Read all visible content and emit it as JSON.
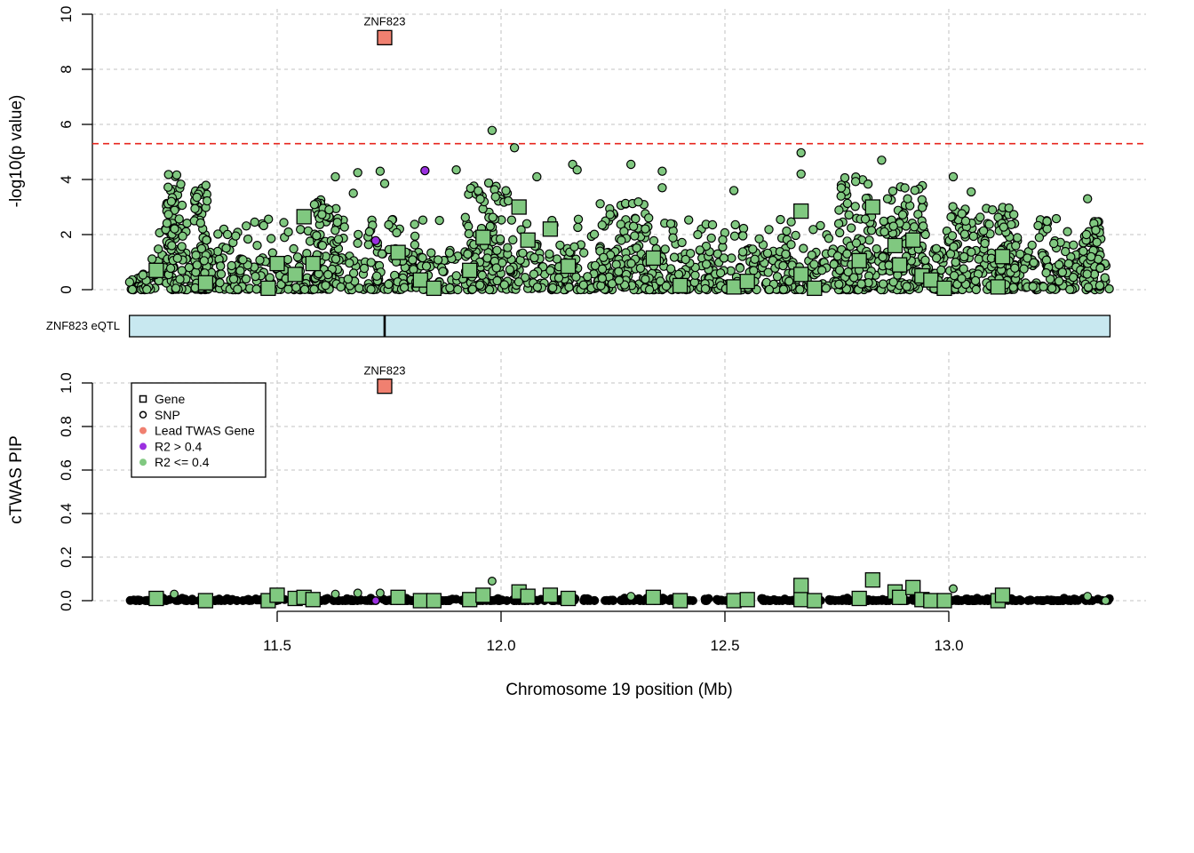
{
  "chart_data": {
    "type": "scatter",
    "xlabel": "Chromosome 19 position (Mb)",
    "x_ticks": [
      "11.5",
      "12.0",
      "12.5",
      "13.0"
    ],
    "x_range": [
      11.17,
      13.36
    ],
    "colors": {
      "lead": "#f08070",
      "high_r2": "#9b30e0",
      "low_r2": "#80c880",
      "threshold": "#e8261e",
      "track_fill": "#c8e8f0",
      "grid": "#cfcfcf"
    },
    "top_panel": {
      "ylabel": "-log10(p value)",
      "y_ticks": [
        "0",
        "2",
        "4",
        "6",
        "8",
        "10"
      ],
      "ylim": [
        0,
        10
      ],
      "threshold": 5.3,
      "lead_gene": {
        "label": "ZNF823",
        "x": 11.74,
        "y": 9.15
      },
      "genes": [
        {
          "x": 11.23,
          "y": 0.7
        },
        {
          "x": 11.34,
          "y": 0.25
        },
        {
          "x": 11.48,
          "y": 0.05
        },
        {
          "x": 11.5,
          "y": 0.95
        },
        {
          "x": 11.54,
          "y": 0.55
        },
        {
          "x": 11.56,
          "y": 2.65
        },
        {
          "x": 11.58,
          "y": 0.95
        },
        {
          "x": 11.77,
          "y": 1.35
        },
        {
          "x": 11.82,
          "y": 0.35
        },
        {
          "x": 11.85,
          "y": 0.05
        },
        {
          "x": 11.93,
          "y": 0.7
        },
        {
          "x": 11.96,
          "y": 1.9
        },
        {
          "x": 12.04,
          "y": 3.0
        },
        {
          "x": 12.06,
          "y": 1.8
        },
        {
          "x": 12.11,
          "y": 2.2
        },
        {
          "x": 12.15,
          "y": 0.85
        },
        {
          "x": 12.34,
          "y": 1.15
        },
        {
          "x": 12.4,
          "y": 0.15
        },
        {
          "x": 12.52,
          "y": 0.1
        },
        {
          "x": 12.55,
          "y": 0.3
        },
        {
          "x": 12.67,
          "y": 0.55
        },
        {
          "x": 12.67,
          "y": 2.85
        },
        {
          "x": 12.7,
          "y": 0.05
        },
        {
          "x": 12.8,
          "y": 1.05
        },
        {
          "x": 12.83,
          "y": 3.0
        },
        {
          "x": 12.88,
          "y": 1.6
        },
        {
          "x": 12.89,
          "y": 0.9
        },
        {
          "x": 12.92,
          "y": 1.8
        },
        {
          "x": 12.94,
          "y": 0.5
        },
        {
          "x": 12.96,
          "y": 0.35
        },
        {
          "x": 12.99,
          "y": 0.05
        },
        {
          "x": 13.11,
          "y": 0.1
        },
        {
          "x": 13.12,
          "y": 1.2
        }
      ],
      "highlight_snps": [
        {
          "x": 11.72,
          "y": 1.78
        },
        {
          "x": 11.83,
          "y": 4.32
        }
      ],
      "peak_snps": [
        {
          "x": 11.98,
          "y": 5.78
        },
        {
          "x": 12.03,
          "y": 5.15
        },
        {
          "x": 12.67,
          "y": 4.97
        },
        {
          "x": 12.29,
          "y": 4.55
        },
        {
          "x": 12.16,
          "y": 4.55
        },
        {
          "x": 11.73,
          "y": 4.3
        },
        {
          "x": 11.68,
          "y": 4.25
        },
        {
          "x": 11.63,
          "y": 4.1
        },
        {
          "x": 11.9,
          "y": 4.35
        },
        {
          "x": 12.36,
          "y": 4.3
        },
        {
          "x": 12.85,
          "y": 4.7
        },
        {
          "x": 13.01,
          "y": 4.1
        },
        {
          "x": 12.52,
          "y": 3.6
        },
        {
          "x": 11.67,
          "y": 3.5
        },
        {
          "x": 11.74,
          "y": 3.85
        },
        {
          "x": 13.31,
          "y": 3.3
        },
        {
          "x": 13.05,
          "y": 3.55
        },
        {
          "x": 12.08,
          "y": 4.1
        },
        {
          "x": 12.17,
          "y": 4.35
        },
        {
          "x": 12.67,
          "y": 4.2
        },
        {
          "x": 12.36,
          "y": 3.7
        }
      ],
      "clusters": [
        {
          "center": 11.27,
          "width": 0.02,
          "peak": 4.2
        },
        {
          "center": 11.33,
          "width": 0.015,
          "peak": 3.8
        },
        {
          "center": 11.61,
          "width": 0.03,
          "peak": 3.3
        },
        {
          "center": 11.97,
          "width": 0.05,
          "peak": 3.9
        },
        {
          "center": 12.27,
          "width": 0.06,
          "peak": 3.2
        },
        {
          "center": 12.79,
          "width": 0.04,
          "peak": 4.1
        },
        {
          "center": 12.9,
          "width": 0.05,
          "peak": 3.8
        },
        {
          "center": 13.05,
          "width": 0.05,
          "peak": 3.1
        },
        {
          "center": 13.13,
          "width": 0.02,
          "peak": 3.0
        },
        {
          "center": 13.32,
          "width": 0.02,
          "peak": 2.6
        }
      ]
    },
    "track": {
      "label": "ZNF823 eQTL",
      "start": 11.17,
      "end": 13.36,
      "tick_at": 11.74
    },
    "bottom_panel": {
      "ylabel": "cTWAS PIP",
      "y_ticks": [
        "0.0",
        "0.2",
        "0.4",
        "0.6",
        "0.8",
        "1.0"
      ],
      "ylim": [
        0,
        1
      ],
      "lead_gene": {
        "label": "ZNF823",
        "x": 11.74,
        "y": 0.985
      },
      "genes": [
        {
          "x": 11.23,
          "y": 0.01
        },
        {
          "x": 11.34,
          "y": 0.0
        },
        {
          "x": 11.48,
          "y": 0.0
        },
        {
          "x": 11.5,
          "y": 0.025
        },
        {
          "x": 11.54,
          "y": 0.01
        },
        {
          "x": 11.56,
          "y": 0.015
        },
        {
          "x": 11.58,
          "y": 0.005
        },
        {
          "x": 11.77,
          "y": 0.015
        },
        {
          "x": 11.82,
          "y": 0.0
        },
        {
          "x": 11.85,
          "y": 0.0
        },
        {
          "x": 11.93,
          "y": 0.005
        },
        {
          "x": 11.96,
          "y": 0.025
        },
        {
          "x": 12.04,
          "y": 0.04
        },
        {
          "x": 12.06,
          "y": 0.02
        },
        {
          "x": 12.11,
          "y": 0.025
        },
        {
          "x": 12.15,
          "y": 0.01
        },
        {
          "x": 12.34,
          "y": 0.015
        },
        {
          "x": 12.4,
          "y": 0.0
        },
        {
          "x": 12.52,
          "y": 0.0
        },
        {
          "x": 12.55,
          "y": 0.005
        },
        {
          "x": 12.67,
          "y": 0.005
        },
        {
          "x": 12.67,
          "y": 0.07
        },
        {
          "x": 12.7,
          "y": 0.0
        },
        {
          "x": 12.8,
          "y": 0.01
        },
        {
          "x": 12.83,
          "y": 0.095
        },
        {
          "x": 12.88,
          "y": 0.04
        },
        {
          "x": 12.89,
          "y": 0.015
        },
        {
          "x": 12.92,
          "y": 0.06
        },
        {
          "x": 12.94,
          "y": 0.005
        },
        {
          "x": 12.96,
          "y": 0.0
        },
        {
          "x": 12.99,
          "y": 0.0
        },
        {
          "x": 13.11,
          "y": 0.0
        },
        {
          "x": 13.12,
          "y": 0.025
        }
      ],
      "highlight_snps": [
        {
          "x": 11.72,
          "y": 0.0
        }
      ],
      "peak_snps": [
        {
          "x": 11.98,
          "y": 0.09
        },
        {
          "x": 13.01,
          "y": 0.055
        },
        {
          "x": 11.27,
          "y": 0.03
        },
        {
          "x": 11.68,
          "y": 0.035
        },
        {
          "x": 11.73,
          "y": 0.035
        },
        {
          "x": 11.63,
          "y": 0.03
        },
        {
          "x": 12.29,
          "y": 0.02
        },
        {
          "x": 13.31,
          "y": 0.02
        }
      ]
    },
    "legend": [
      {
        "label": "Gene",
        "symbol": "square",
        "color": "none"
      },
      {
        "label": "SNP",
        "symbol": "circle",
        "color": "none"
      },
      {
        "label": "Lead TWAS Gene",
        "symbol": "dot",
        "color": "#f08070"
      },
      {
        "label": "R2 > 0.4",
        "symbol": "dot",
        "color": "#9b30e0"
      },
      {
        "label": "R2 <= 0.4",
        "symbol": "dot",
        "color": "#80c880"
      }
    ],
    "legend_position": "top-left"
  }
}
